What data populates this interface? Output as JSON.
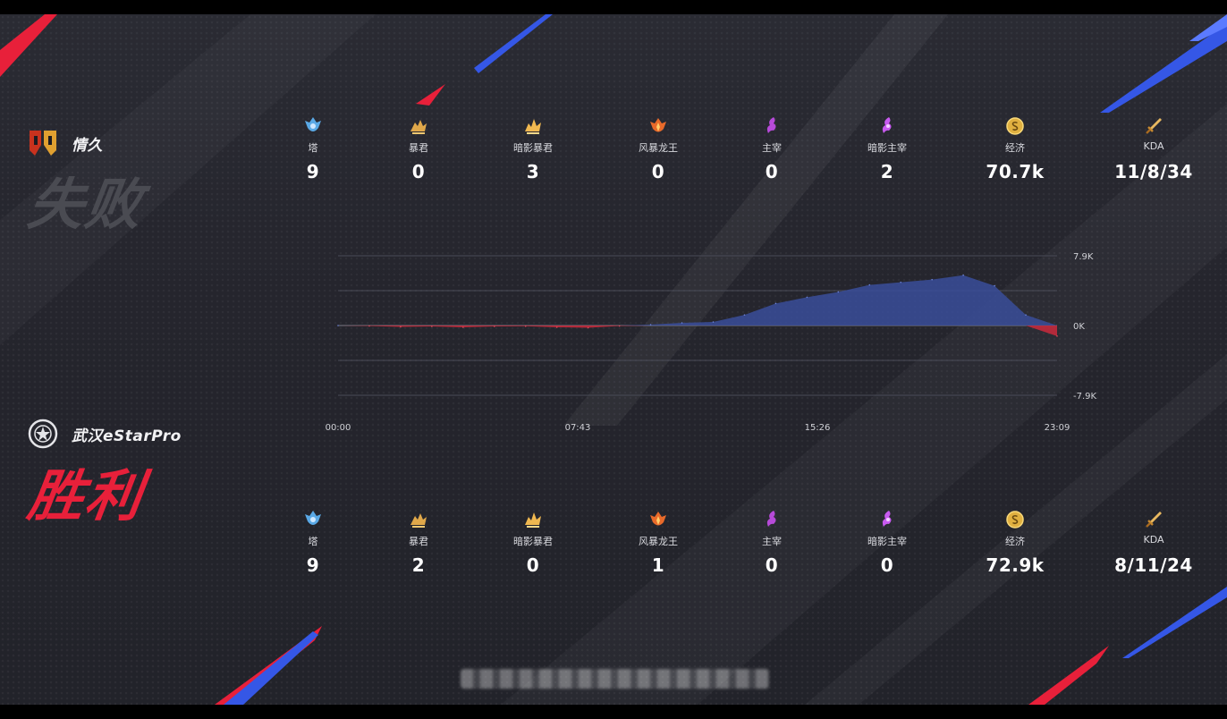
{
  "teams": {
    "top": {
      "name": "情久",
      "result": "失败",
      "stats": [
        {
          "label": "塔",
          "value": "9",
          "icon": "tower-icon"
        },
        {
          "label": "暴君",
          "value": "0",
          "icon": "tyrant-icon"
        },
        {
          "label": "暗影暴君",
          "value": "3",
          "icon": "shadow-tyrant-icon"
        },
        {
          "label": "风暴龙王",
          "value": "0",
          "icon": "storm-dragon-icon"
        },
        {
          "label": "主宰",
          "value": "0",
          "icon": "overlord-icon"
        },
        {
          "label": "暗影主宰",
          "value": "2",
          "icon": "shadow-overlord-icon"
        },
        {
          "label": "经济",
          "value": "70.7k",
          "icon": "gold-icon"
        },
        {
          "label": "KDA",
          "value": "11/8/34",
          "icon": "sword-icon"
        }
      ]
    },
    "bottom": {
      "name": "武汉eStarPro",
      "result": "胜利",
      "stats": [
        {
          "label": "塔",
          "value": "9",
          "icon": "tower-icon"
        },
        {
          "label": "暴君",
          "value": "2",
          "icon": "tyrant-icon"
        },
        {
          "label": "暗影暴君",
          "value": "0",
          "icon": "shadow-tyrant-icon"
        },
        {
          "label": "风暴龙王",
          "value": "1",
          "icon": "storm-dragon-icon"
        },
        {
          "label": "主宰",
          "value": "0",
          "icon": "overlord-icon"
        },
        {
          "label": "暗影主宰",
          "value": "0",
          "icon": "shadow-overlord-icon"
        },
        {
          "label": "经济",
          "value": "72.9k",
          "icon": "gold-icon"
        },
        {
          "label": "KDA",
          "value": "8/11/24",
          "icon": "sword-icon"
        }
      ]
    }
  },
  "chart_data": {
    "type": "area",
    "title": "",
    "xlabel": "",
    "ylabel": "",
    "x_ticks": [
      "00:00",
      "07:43",
      "15:26",
      "23:09"
    ],
    "y_ticks": [
      "7.9K",
      "0K",
      "-7.9K"
    ],
    "x": [
      0,
      1,
      2,
      3,
      4,
      5,
      6,
      7,
      8,
      9,
      10,
      11,
      12,
      13,
      14,
      15,
      16,
      17,
      18,
      19,
      20,
      21,
      22,
      23
    ],
    "x_unit": "minutes",
    "ylim": [
      -7900,
      7900
    ],
    "series": [
      {
        "values": [
          0,
          -50,
          -150,
          -100,
          -200,
          -100,
          -80,
          -200,
          -250,
          -50,
          100,
          300,
          400,
          1200,
          2500,
          3200,
          3800,
          4600,
          4900,
          5200,
          5700,
          4500,
          1200,
          -1200
        ],
        "colors": {
          "positive": "#3a4d9a",
          "negative": "#c22a3c"
        }
      }
    ]
  },
  "colors": {
    "accent_red": "#e8203a",
    "accent_blue": "#3557e6",
    "lose_gray": "#4a4b52",
    "positive_area": "#3a4d9a",
    "negative_area": "#c22a3c"
  }
}
